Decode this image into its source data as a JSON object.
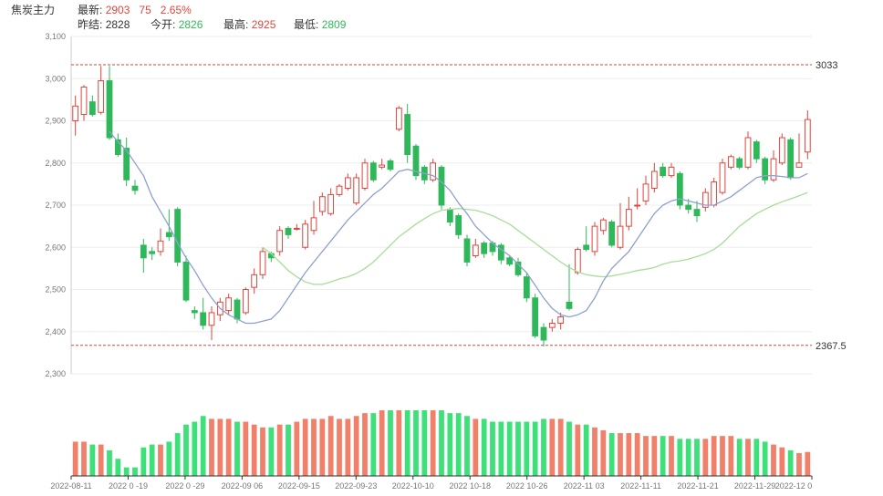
{
  "header": {
    "name": "焦炭主力",
    "latest_label": "最新:",
    "latest": "2903",
    "change": "75",
    "change_pct": "2.65%",
    "prev_close_label": "昨结:",
    "prev_close": "2828",
    "open_label": "今开:",
    "open": "2826",
    "high_label": "最高:",
    "high": "2925",
    "low_label": "最低:",
    "low": "2809"
  },
  "colors": {
    "up": "#e0453c",
    "down": "#2fb85a",
    "ma_short": "#8ea0d0",
    "ma_long": "#a9dd98",
    "vol_up": "#f0806a",
    "vol_down": "#3ee07a",
    "ref_line": "#c84a3c"
  },
  "chart_data": {
    "type": "candlestick",
    "y_axis": {
      "min": 2300,
      "max": 3100,
      "ticks": [
        "2,300",
        "2,400",
        "2,500",
        "2,600",
        "2,700",
        "2,800",
        "2,900",
        "3,000",
        "3,100"
      ]
    },
    "ref_lines": [
      {
        "value": 3033,
        "label": "3033"
      },
      {
        "value": 2367.5,
        "label": "2367.5"
      }
    ],
    "x_labels": [
      "2022-08-11",
      "2022 0 -19",
      "2022 0 -29",
      "2022-09 06",
      "2022-09-15",
      "2022-09-23",
      "2022-10-10",
      "2022 10-18",
      "2022 10-26",
      "2022-11 03",
      "2022-11-11",
      "2022-11-21",
      "2022-11-29",
      "2022-12 0"
    ],
    "candles": [
      [
        2900,
        2935,
        2865,
        2960
      ],
      [
        2915,
        2980,
        2900,
        2985
      ],
      [
        2945,
        2915,
        2910,
        2960
      ],
      [
        2920,
        2995,
        2915,
        3030
      ],
      [
        2995,
        2860,
        2855,
        3030
      ],
      [
        2855,
        2820,
        2815,
        2870
      ],
      [
        2835,
        2760,
        2745,
        2860
      ],
      [
        2745,
        2735,
        2725,
        2760
      ],
      [
        2605,
        2575,
        2540,
        2620
      ],
      [
        2590,
        2585,
        2570,
        2600
      ],
      [
        2590,
        2615,
        2580,
        2645
      ],
      [
        2635,
        2625,
        2615,
        2690
      ],
      [
        2690,
        2565,
        2555,
        2695
      ],
      [
        2565,
        2475,
        2470,
        2580
      ],
      [
        2450,
        2445,
        2430,
        2460
      ],
      [
        2445,
        2415,
        2405,
        2480
      ],
      [
        2415,
        2445,
        2380,
        2460
      ],
      [
        2440,
        2470,
        2425,
        2480
      ],
      [
        2450,
        2480,
        2440,
        2490
      ],
      [
        2475,
        2430,
        2420,
        2480
      ],
      [
        2445,
        2500,
        2440,
        2505
      ],
      [
        2505,
        2535,
        2490,
        2550
      ],
      [
        2535,
        2590,
        2525,
        2600
      ],
      [
        2585,
        2575,
        2565,
        2590
      ],
      [
        2590,
        2640,
        2580,
        2650
      ],
      [
        2645,
        2630,
        2620,
        2650
      ],
      [
        2645,
        2645,
        2640,
        2655
      ],
      [
        2600,
        2655,
        2595,
        2665
      ],
      [
        2640,
        2670,
        2630,
        2710
      ],
      [
        2685,
        2720,
        2675,
        2730
      ],
      [
        2680,
        2725,
        2675,
        2740
      ],
      [
        2725,
        2745,
        2720,
        2750
      ],
      [
        2740,
        2765,
        2735,
        2775
      ],
      [
        2705,
        2765,
        2700,
        2775
      ],
      [
        2740,
        2800,
        2735,
        2810
      ],
      [
        2800,
        2760,
        2755,
        2805
      ],
      [
        2790,
        2795,
        2785,
        2810
      ],
      [
        2805,
        2785,
        2780,
        2810
      ],
      [
        2880,
        2930,
        2875,
        2935
      ],
      [
        2915,
        2820,
        2800,
        2940
      ],
      [
        2840,
        2770,
        2760,
        2845
      ],
      [
        2790,
        2760,
        2750,
        2795
      ],
      [
        2760,
        2800,
        2755,
        2810
      ],
      [
        2790,
        2700,
        2690,
        2795
      ],
      [
        2690,
        2660,
        2650,
        2695
      ],
      [
        2675,
        2630,
        2620,
        2680
      ],
      [
        2620,
        2565,
        2555,
        2630
      ],
      [
        2580,
        2605,
        2575,
        2620
      ],
      [
        2610,
        2585,
        2575,
        2615
      ],
      [
        2610,
        2590,
        2580,
        2615
      ],
      [
        2605,
        2570,
        2560,
        2610
      ],
      [
        2575,
        2560,
        2555,
        2580
      ],
      [
        2565,
        2535,
        2530,
        2575
      ],
      [
        2530,
        2480,
        2470,
        2540
      ],
      [
        2480,
        2390,
        2385,
        2490
      ],
      [
        2410,
        2380,
        2365,
        2420
      ],
      [
        2410,
        2420,
        2400,
        2430
      ],
      [
        2420,
        2435,
        2405,
        2445
      ],
      [
        2470,
        2455,
        2450,
        2560
      ],
      [
        2540,
        2595,
        2535,
        2600
      ],
      [
        2605,
        2595,
        2590,
        2650
      ],
      [
        2590,
        2650,
        2580,
        2660
      ],
      [
        2640,
        2665,
        2630,
        2670
      ],
      [
        2660,
        2605,
        2600,
        2665
      ],
      [
        2600,
        2650,
        2595,
        2705
      ],
      [
        2650,
        2690,
        2640,
        2720
      ],
      [
        2700,
        2700,
        2690,
        2740
      ],
      [
        2710,
        2750,
        2700,
        2770
      ],
      [
        2740,
        2780,
        2730,
        2800
      ],
      [
        2790,
        2770,
        2765,
        2800
      ],
      [
        2770,
        2790,
        2765,
        2800
      ],
      [
        2775,
        2700,
        2690,
        2780
      ],
      [
        2700,
        2690,
        2680,
        2715
      ],
      [
        2690,
        2675,
        2660,
        2710
      ],
      [
        2695,
        2730,
        2685,
        2740
      ],
      [
        2700,
        2755,
        2695,
        2765
      ],
      [
        2730,
        2800,
        2725,
        2810
      ],
      [
        2790,
        2815,
        2785,
        2820
      ],
      [
        2810,
        2790,
        2785,
        2815
      ],
      [
        2790,
        2860,
        2785,
        2875
      ],
      [
        2850,
        2810,
        2800,
        2855
      ],
      [
        2810,
        2760,
        2750,
        2815
      ],
      [
        2760,
        2810,
        2755,
        2830
      ],
      [
        2800,
        2860,
        2795,
        2870
      ],
      [
        2855,
        2765,
        2760,
        2860
      ],
      [
        2790,
        2800,
        2795,
        2870
      ],
      [
        2826,
        2903,
        2809,
        2925
      ]
    ],
    "ma_short": [
      null,
      null,
      null,
      null,
      2875,
      2850,
      2830,
      2800,
      2770,
      2720,
      2685,
      2650,
      2610,
      2575,
      2545,
      2510,
      2480,
      2455,
      2440,
      2430,
      2420,
      2420,
      2425,
      2430,
      2450,
      2480,
      2510,
      2540,
      2565,
      2590,
      2615,
      2640,
      2665,
      2685,
      2705,
      2725,
      2740,
      2760,
      2780,
      2785,
      2780,
      2775,
      2770,
      2755,
      2735,
      2705,
      2680,
      2650,
      2630,
      2610,
      2595,
      2580,
      2560,
      2540,
      2510,
      2480,
      2455,
      2440,
      2435,
      2440,
      2450,
      2480,
      2520,
      2550,
      2570,
      2590,
      2620,
      2650,
      2680,
      2700,
      2710,
      2715,
      2710,
      2705,
      2700,
      2700,
      2710,
      2720,
      2735,
      2750,
      2765,
      2770,
      2770,
      2768,
      2765,
      2765,
      2775
    ],
    "ma_long": [
      null,
      null,
      null,
      null,
      null,
      null,
      null,
      null,
      null,
      null,
      null,
      null,
      null,
      null,
      null,
      null,
      null,
      null,
      null,
      null,
      null,
      null,
      2600,
      2585,
      2565,
      2545,
      2530,
      2518,
      2512,
      2512,
      2518,
      2525,
      2530,
      2538,
      2550,
      2565,
      2585,
      2605,
      2625,
      2640,
      2655,
      2668,
      2680,
      2688,
      2690,
      2692,
      2690,
      2688,
      2682,
      2675,
      2665,
      2655,
      2640,
      2625,
      2610,
      2595,
      2580,
      2565,
      2552,
      2542,
      2535,
      2532,
      2530,
      2532,
      2536,
      2540,
      2545,
      2548,
      2552,
      2560,
      2565,
      2568,
      2572,
      2578,
      2585,
      2595,
      2610,
      2630,
      2650,
      2665,
      2680,
      2690,
      2700,
      2708,
      2715,
      2722,
      2730
    ],
    "volume": [
      60,
      60,
      55,
      55,
      45,
      30,
      15,
      15,
      50,
      55,
      55,
      60,
      75,
      90,
      95,
      105,
      100,
      100,
      100,
      95,
      95,
      90,
      85,
      85,
      90,
      90,
      95,
      100,
      100,
      100,
      105,
      100,
      100,
      105,
      110,
      110,
      115,
      115,
      115,
      115,
      115,
      115,
      115,
      115,
      110,
      110,
      105,
      100,
      100,
      95,
      95,
      95,
      95,
      95,
      95,
      100,
      100,
      100,
      95,
      90,
      90,
      85,
      80,
      75,
      75,
      75,
      75,
      70,
      70,
      70,
      70,
      65,
      65,
      65,
      65,
      70,
      70,
      70,
      65,
      65,
      65,
      60,
      55,
      50,
      45,
      40,
      42
    ]
  }
}
